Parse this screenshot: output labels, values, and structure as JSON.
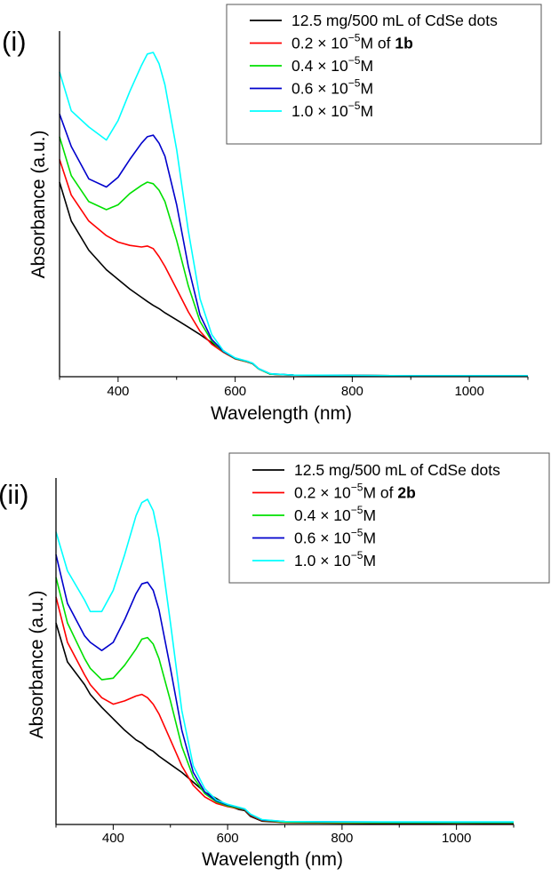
{
  "chart_data": [
    {
      "type": "line",
      "panel_label": "(i)",
      "title": "",
      "xlabel": "Wavelength (nm)",
      "ylabel": "Absorbance (a.u.)",
      "xlim": [
        300,
        1100
      ],
      "ylim": [
        0,
        1.0
      ],
      "x_ticks": [
        400,
        600,
        800,
        1000
      ],
      "grid": false,
      "legend_position": "top-right",
      "legend": [
        {
          "text": "12.5 mg/500 mL of CdSe dots",
          "sup": "",
          "tail": "",
          "bold": ""
        },
        {
          "text": "0.2 × 10",
          "sup": "−5",
          "tail": "M of ",
          "bold": "1b"
        },
        {
          "text": "0.4 × 10",
          "sup": "−5",
          "tail": "M",
          "bold": ""
        },
        {
          "text": "0.6 × 10",
          "sup": "−5",
          "tail": "M",
          "bold": ""
        },
        {
          "text": "1.0 × 10",
          "sup": "−5",
          "tail": "M",
          "bold": ""
        }
      ],
      "x": [
        300,
        320,
        350,
        380,
        400,
        420,
        440,
        450,
        460,
        470,
        480,
        500,
        520,
        540,
        560,
        580,
        600,
        620,
        630,
        640,
        660,
        700,
        800,
        900,
        1000,
        1100
      ],
      "series": [
        {
          "name": "12.5 mg/500 mL of CdSe dots",
          "color": "#000000",
          "values": [
            0.6,
            0.48,
            0.39,
            0.33,
            0.3,
            0.27,
            0.245,
            0.232,
            0.22,
            0.21,
            0.197,
            0.175,
            0.153,
            0.13,
            0.105,
            0.08,
            0.055,
            0.046,
            0.04,
            0.024,
            0.008,
            0.005,
            0.004,
            0.003,
            0.003,
            0.003
          ]
        },
        {
          "name": "0.2 × 10−5 M of 1b",
          "color": "#ff0000",
          "values": [
            0.67,
            0.56,
            0.48,
            0.435,
            0.415,
            0.405,
            0.4,
            0.403,
            0.395,
            0.37,
            0.34,
            0.27,
            0.2,
            0.14,
            0.1,
            0.075,
            0.055,
            0.046,
            0.04,
            0.024,
            0.008,
            0.005,
            0.004,
            0.003,
            0.003,
            0.003
          ]
        },
        {
          "name": "0.4 × 10−5 M",
          "color": "#00e000",
          "values": [
            0.74,
            0.62,
            0.54,
            0.515,
            0.53,
            0.565,
            0.59,
            0.6,
            0.595,
            0.575,
            0.54,
            0.42,
            0.28,
            0.17,
            0.11,
            0.077,
            0.056,
            0.047,
            0.04,
            0.024,
            0.008,
            0.005,
            0.004,
            0.003,
            0.003,
            0.003
          ]
        },
        {
          "name": "0.6 × 10−5 M",
          "color": "#0000cc",
          "values": [
            0.81,
            0.71,
            0.61,
            0.585,
            0.615,
            0.67,
            0.72,
            0.74,
            0.745,
            0.72,
            0.68,
            0.53,
            0.34,
            0.19,
            0.115,
            0.078,
            0.057,
            0.048,
            0.041,
            0.025,
            0.009,
            0.005,
            0.004,
            0.003,
            0.003,
            0.003
          ]
        },
        {
          "name": "1.0 × 10−5 M",
          "color": "#00ffff",
          "values": [
            0.94,
            0.82,
            0.77,
            0.73,
            0.79,
            0.88,
            0.96,
            0.995,
            1.0,
            0.965,
            0.9,
            0.7,
            0.45,
            0.24,
            0.13,
            0.08,
            0.058,
            0.048,
            0.042,
            0.025,
            0.009,
            0.005,
            0.004,
            0.003,
            0.003,
            0.003
          ]
        }
      ]
    },
    {
      "type": "line",
      "panel_label": "(ii)",
      "title": "",
      "xlabel": "Wavelength (nm)",
      "ylabel": "Absorbance (a.u.)",
      "xlim": [
        300,
        1100
      ],
      "ylim": [
        0,
        1.0
      ],
      "x_ticks": [
        400,
        600,
        800,
        1000
      ],
      "grid": false,
      "legend_position": "top-right",
      "legend": [
        {
          "text": "12.5 mg/500 mL of CdSe dots",
          "sup": "",
          "tail": "",
          "bold": ""
        },
        {
          "text": "0.2 × 10",
          "sup": "−5",
          "tail": "M of ",
          "bold": "2b"
        },
        {
          "text": "0.4 × 10",
          "sup": "−5",
          "tail": "M",
          "bold": ""
        },
        {
          "text": "0.6 × 10",
          "sup": "−5",
          "tail": "M",
          "bold": ""
        },
        {
          "text": "1.0 × 10",
          "sup": "−5",
          "tail": "M",
          "bold": ""
        }
      ],
      "x": [
        300,
        320,
        350,
        360,
        380,
        400,
        420,
        440,
        450,
        460,
        470,
        480,
        500,
        520,
        540,
        560,
        580,
        600,
        620,
        630,
        640,
        660,
        700,
        800,
        900,
        1000,
        1100
      ],
      "series": [
        {
          "name": "12.5 mg/500 mL of CdSe dots",
          "color": "#000000",
          "values": [
            0.62,
            0.5,
            0.43,
            0.4,
            0.36,
            0.325,
            0.29,
            0.26,
            0.25,
            0.235,
            0.225,
            0.21,
            0.185,
            0.16,
            0.13,
            0.1,
            0.08,
            0.058,
            0.046,
            0.043,
            0.025,
            0.01,
            0.006,
            0.004,
            0.003,
            0.004,
            0.003
          ]
        },
        {
          "name": "0.2 × 10−5 M of 2b",
          "color": "#ff0000",
          "values": [
            0.7,
            0.56,
            0.46,
            0.43,
            0.39,
            0.37,
            0.38,
            0.395,
            0.4,
            0.39,
            0.37,
            0.34,
            0.26,
            0.18,
            0.12,
            0.085,
            0.065,
            0.055,
            0.048,
            0.045,
            0.028,
            0.012,
            0.006,
            0.005,
            0.004,
            0.004,
            0.004
          ]
        },
        {
          "name": "0.4 × 10−5 M",
          "color": "#00e000",
          "values": [
            0.76,
            0.62,
            0.51,
            0.48,
            0.445,
            0.45,
            0.49,
            0.54,
            0.57,
            0.575,
            0.555,
            0.51,
            0.38,
            0.24,
            0.145,
            0.095,
            0.07,
            0.057,
            0.05,
            0.046,
            0.03,
            0.013,
            0.007,
            0.006,
            0.005,
            0.005,
            0.005
          ]
        },
        {
          "name": "0.6 × 10−5 M",
          "color": "#0000cc",
          "values": [
            0.83,
            0.68,
            0.58,
            0.56,
            0.535,
            0.56,
            0.63,
            0.71,
            0.74,
            0.745,
            0.72,
            0.66,
            0.48,
            0.29,
            0.16,
            0.1,
            0.073,
            0.06,
            0.052,
            0.047,
            0.031,
            0.014,
            0.009,
            0.008,
            0.007,
            0.007,
            0.007
          ]
        },
        {
          "name": "1.0 × 10−5 M",
          "color": "#00ffff",
          "values": [
            0.9,
            0.78,
            0.69,
            0.655,
            0.655,
            0.72,
            0.83,
            0.95,
            0.99,
            1.0,
            0.965,
            0.88,
            0.62,
            0.35,
            0.18,
            0.11,
            0.076,
            0.062,
            0.053,
            0.048,
            0.032,
            0.015,
            0.009,
            0.008,
            0.008,
            0.008,
            0.008
          ]
        }
      ]
    }
  ]
}
